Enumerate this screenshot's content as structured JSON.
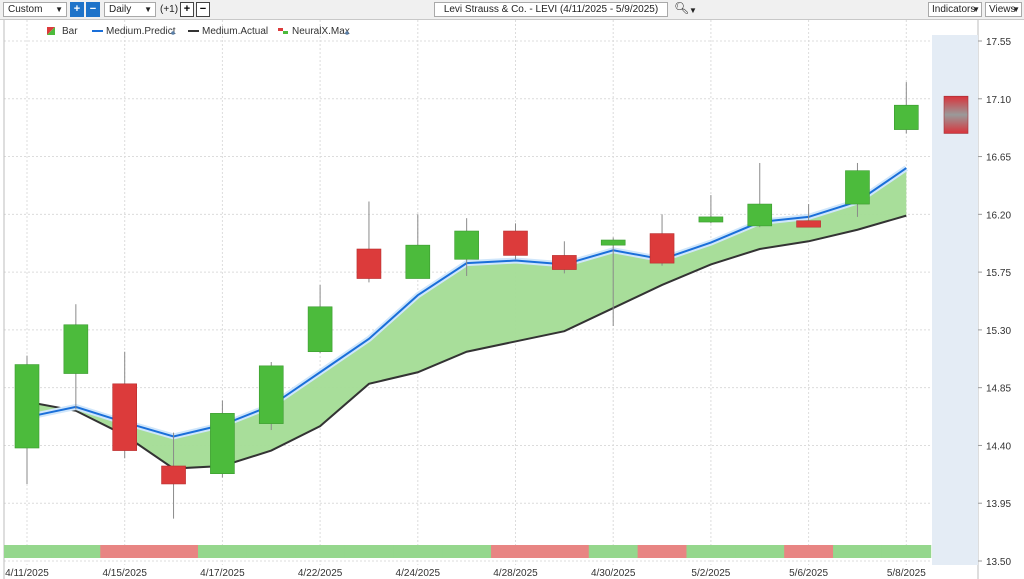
{
  "toolbar": {
    "period_select": "Custom",
    "interval_select": "Daily",
    "offset_label": "(+1)",
    "symbol_title": "Levi Strauss & Co. - LEVI (4/11/2025 - 5/9/2025)",
    "indicators_label": "Indicators",
    "views_label": "Views"
  },
  "legend": [
    {
      "label": "Bar",
      "icon": "bar-icon"
    },
    {
      "label": "Medium.Predict",
      "color": "#1a6fd9"
    },
    {
      "label": "Medium.Actual",
      "color": "#333333"
    },
    {
      "label": "NeuralX.Max",
      "icon": "neuralx-icon"
    }
  ],
  "colors": {
    "up": "#4cbb3c",
    "down": "#dc3b3b",
    "predict": "#1a6fd9",
    "actual": "#333333",
    "fill": "#a3dc95",
    "band_green": "#95d78d",
    "band_red": "#e88583",
    "forecast_bg": "#e4ecf5"
  },
  "chart_data": {
    "type": "candlestick",
    "y_ticks": [
      "17.55",
      "17.10",
      "16.65",
      "16.20",
      "15.75",
      "15.30",
      "14.85",
      "14.40",
      "13.95",
      "13.50"
    ],
    "ylim": [
      13.5,
      17.55
    ],
    "x_tick_labels": [
      {
        "index": 0,
        "label": "4/11/2025"
      },
      {
        "index": 2,
        "label": "4/15/2025"
      },
      {
        "index": 4,
        "label": "4/17/2025"
      },
      {
        "index": 6,
        "label": "4/22/2025"
      },
      {
        "index": 8,
        "label": "4/24/2025"
      },
      {
        "index": 10,
        "label": "4/28/2025"
      },
      {
        "index": 12,
        "label": "4/30/2025"
      },
      {
        "index": 14,
        "label": "5/2/2025"
      },
      {
        "index": 16,
        "label": "5/6/2025"
      },
      {
        "index": 18,
        "label": "5/8/2025"
      }
    ],
    "candles": [
      {
        "open": 14.38,
        "high": 15.1,
        "low": 14.1,
        "close": 15.03
      },
      {
        "open": 14.96,
        "high": 15.5,
        "low": 14.68,
        "close": 15.34
      },
      {
        "open": 14.88,
        "high": 15.13,
        "low": 14.3,
        "close": 14.36
      },
      {
        "open": 14.24,
        "high": 14.5,
        "low": 13.83,
        "close": 14.1
      },
      {
        "open": 14.18,
        "high": 14.75,
        "low": 14.15,
        "close": 14.65
      },
      {
        "open": 14.57,
        "high": 15.05,
        "low": 14.52,
        "close": 15.02
      },
      {
        "open": 15.13,
        "high": 15.65,
        "low": 15.12,
        "close": 15.48
      },
      {
        "open": 15.93,
        "high": 16.3,
        "low": 15.67,
        "close": 15.7
      },
      {
        "open": 15.7,
        "high": 16.2,
        "low": 15.7,
        "close": 15.96
      },
      {
        "open": 15.85,
        "high": 16.17,
        "low": 15.72,
        "close": 16.07
      },
      {
        "open": 16.07,
        "high": 16.13,
        "low": 15.85,
        "close": 15.88
      },
      {
        "open": 15.88,
        "high": 15.99,
        "low": 15.74,
        "close": 15.77
      },
      {
        "open": 15.96,
        "high": 16.02,
        "low": 15.33,
        "close": 16.0
      },
      {
        "open": 16.05,
        "high": 16.2,
        "low": 15.8,
        "close": 15.82
      },
      {
        "open": 16.14,
        "high": 16.35,
        "low": 16.13,
        "close": 16.18
      },
      {
        "open": 16.11,
        "high": 16.6,
        "low": 16.1,
        "close": 16.28
      },
      {
        "open": 16.15,
        "high": 16.28,
        "low": 16.1,
        "close": 16.1
      },
      {
        "open": 16.28,
        "high": 16.6,
        "low": 16.18,
        "close": 16.54
      },
      {
        "open": 16.86,
        "high": 17.23,
        "low": 16.83,
        "close": 17.05
      }
    ],
    "forecast_candle": {
      "open": 17.12,
      "close": 16.83
    },
    "medium_predict": [
      14.62,
      14.7,
      14.58,
      14.47,
      14.56,
      14.71,
      14.97,
      15.23,
      15.57,
      15.82,
      15.84,
      15.81,
      15.92,
      15.85,
      15.98,
      16.14,
      16.18,
      16.3,
      16.56
    ],
    "medium_actual": [
      14.74,
      14.67,
      14.48,
      14.22,
      14.24,
      14.36,
      14.55,
      14.88,
      14.97,
      15.13,
      15.21,
      15.29,
      15.47,
      15.65,
      15.81,
      15.93,
      15.99,
      16.08,
      16.19
    ],
    "bottom_band": [
      "green",
      "green",
      "red",
      "red",
      "green",
      "green",
      "green",
      "green",
      "green",
      "green",
      "red",
      "red",
      "green",
      "red",
      "green",
      "green",
      "red",
      "green",
      "green"
    ]
  }
}
